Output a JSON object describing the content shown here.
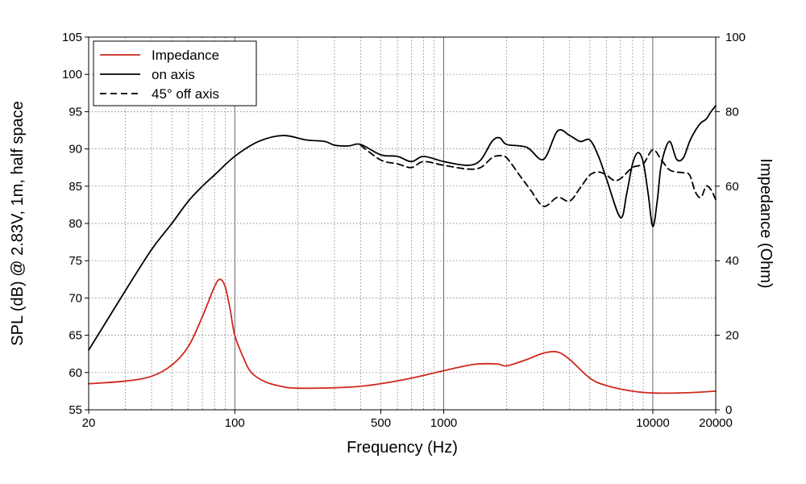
{
  "chart_data": {
    "type": "line",
    "xlabel": "Frequency (Hz)",
    "ylabel": "SPL (dB) @ 2.83V, 1m, half space",
    "y2label": "Impedance (Ohm)",
    "xscale": "log",
    "xlim": [
      20,
      20000
    ],
    "ylim": [
      55,
      105
    ],
    "y2lim": [
      0,
      100
    ],
    "grid": true,
    "legend_position": "top-left",
    "x_tick_labels": [
      "20",
      "100",
      "500",
      "1000",
      "10000",
      "20000"
    ],
    "x_tick_values": [
      20,
      100,
      500,
      1000,
      10000,
      20000
    ],
    "y_tick_labels": [
      "55",
      "60",
      "65",
      "70",
      "75",
      "80",
      "85",
      "90",
      "95",
      "100",
      "105"
    ],
    "y2_tick_labels": [
      "0",
      "20",
      "40",
      "60",
      "80",
      "100"
    ],
    "series": [
      {
        "name": "Impedance",
        "axis": "right",
        "color": "#d0281e",
        "style": "solid",
        "x": [
          20,
          30,
          40,
          50,
          60,
          70,
          80,
          85,
          90,
          95,
          100,
          110,
          120,
          140,
          170,
          200,
          300,
          400,
          500,
          700,
          1000,
          1400,
          1800,
          2000,
          2500,
          3000,
          3500,
          4000,
          5000,
          6000,
          8000,
          10000,
          15000,
          20000
        ],
        "y": [
          7,
          7.7,
          9,
          12,
          17,
          25,
          33,
          35,
          33,
          27,
          20,
          14,
          10,
          7.5,
          6.2,
          5.8,
          5.9,
          6.3,
          7,
          8.5,
          10.5,
          12.2,
          12.3,
          11.8,
          13.5,
          15.2,
          15.5,
          13.5,
          8.5,
          6.5,
          5,
          4.5,
          4.6,
          5
        ]
      },
      {
        "name": "on axis",
        "axis": "left",
        "color": "#000000",
        "style": "solid",
        "x": [
          20,
          30,
          40,
          50,
          60,
          70,
          80,
          100,
          130,
          170,
          220,
          270,
          300,
          350,
          400,
          500,
          600,
          700,
          800,
          1000,
          1300,
          1500,
          1700,
          1850,
          2000,
          2500,
          3000,
          3500,
          4000,
          4500,
          5000,
          5500,
          6000,
          7000,
          7500,
          8000,
          8500,
          9000,
          9500,
          10000,
          10500,
          11000,
          12000,
          13000,
          14000,
          15000,
          16000,
          17000,
          18000,
          19000,
          20000
        ],
        "y": [
          63,
          71,
          76.5,
          80,
          83,
          85,
          86.5,
          89,
          91,
          91.8,
          91.2,
          91,
          90.5,
          90.4,
          90.6,
          89.2,
          89.0,
          88.3,
          89,
          88.3,
          87.8,
          88.5,
          91,
          91.5,
          90.6,
          90.2,
          88.6,
          92.4,
          91.8,
          91,
          91.2,
          89,
          86,
          80.8,
          84,
          88,
          89.5,
          88.2,
          84,
          79.6,
          83,
          88,
          91,
          88.6,
          88.8,
          91,
          92.5,
          93.5,
          94,
          95,
          95.8
        ]
      },
      {
        "name": "45° off axis",
        "axis": "left",
        "color": "#000000",
        "style": "dashed",
        "x": [
          400,
          500,
          600,
          700,
          800,
          1000,
          1300,
          1500,
          1700,
          1850,
          2000,
          2300,
          2600,
          3000,
          3500,
          4000,
          4500,
          5000,
          5500,
          6000,
          6500,
          7000,
          8000,
          9000,
          10000,
          11000,
          12000,
          13000,
          14000,
          15000,
          16000,
          17000,
          18000,
          19000,
          20000
        ],
        "y": [
          90.5,
          88.5,
          88.0,
          87.5,
          88.3,
          87.8,
          87.3,
          87.5,
          88.8,
          89.1,
          88.8,
          86.5,
          84.5,
          82.3,
          83.5,
          83.0,
          84.8,
          86.5,
          86.9,
          86.5,
          85.8,
          86.0,
          87.5,
          88.0,
          89.9,
          88.5,
          87.2,
          86.9,
          86.8,
          86.5,
          84.2,
          83.5,
          85.0,
          84.5,
          83.2
        ]
      }
    ]
  }
}
